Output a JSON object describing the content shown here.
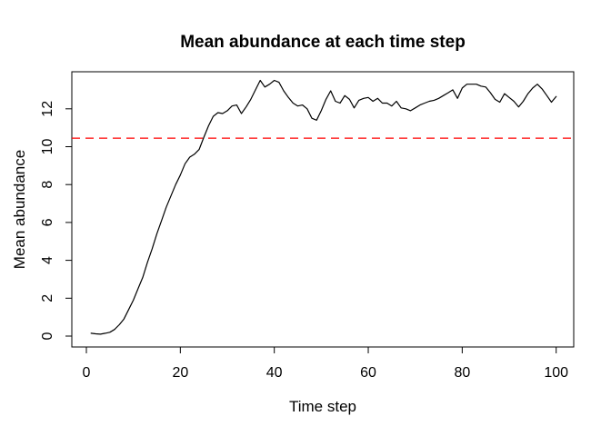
{
  "window": {
    "background": "#ffffff"
  },
  "chart_data": {
    "type": "line",
    "title": "Mean abundance at each time step",
    "xlabel": "Time step",
    "ylabel": "Mean abundance",
    "x_ticks": [
      0,
      20,
      40,
      60,
      80,
      100
    ],
    "y_ticks": [
      0,
      2,
      4,
      6,
      8,
      10,
      12
    ],
    "xlim": [
      1,
      100
    ],
    "ylim": [
      0.1,
      13.5
    ],
    "grid": false,
    "legend": "none",
    "series": [
      {
        "name": "mean-abundance",
        "color": "#000000",
        "style": "solid",
        "x_start": 1,
        "x_step": 1,
        "values": [
          0.15,
          0.12,
          0.1,
          0.15,
          0.2,
          0.35,
          0.6,
          0.9,
          1.4,
          1.9,
          2.5,
          3.1,
          3.9,
          4.6,
          5.4,
          6.1,
          6.8,
          7.4,
          8.0,
          8.5,
          9.1,
          9.45,
          9.6,
          9.85,
          10.5,
          11.1,
          11.6,
          11.8,
          11.75,
          11.9,
          12.15,
          12.2,
          11.75,
          12.1,
          12.5,
          13.0,
          13.5,
          13.15,
          13.3,
          13.5,
          13.4,
          12.95,
          12.6,
          12.3,
          12.15,
          12.2,
          12.0,
          11.5,
          11.4,
          11.9,
          12.5,
          12.95,
          12.4,
          12.3,
          12.7,
          12.5,
          12.05,
          12.45,
          12.55,
          12.6,
          12.4,
          12.55,
          12.3,
          12.3,
          12.15,
          12.4,
          12.05,
          12.0,
          11.9,
          12.05,
          12.2,
          12.3,
          12.4,
          12.45,
          12.55,
          12.7,
          12.85,
          13.0,
          12.55,
          13.1,
          13.3,
          13.3,
          13.3,
          13.2,
          13.15,
          12.85,
          12.5,
          12.35,
          12.8,
          12.6,
          12.4,
          12.1,
          12.4,
          12.8,
          13.1,
          13.3,
          13.05,
          12.7,
          12.35,
          12.65
        ]
      }
    ],
    "hline": {
      "y": 10.45,
      "color": "#ff0000",
      "style": "dashed"
    }
  }
}
